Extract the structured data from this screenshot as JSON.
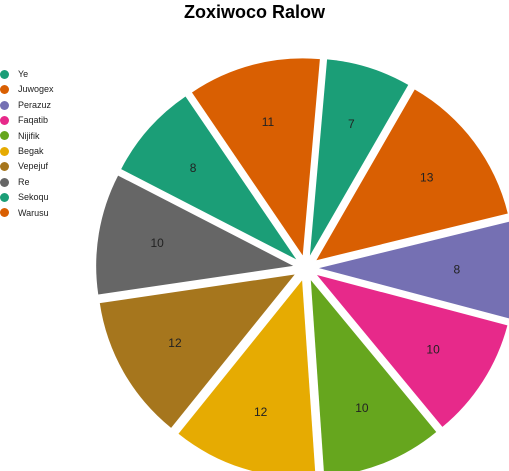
{
  "chart_data": {
    "type": "pie",
    "title": "Zoxiwoco Ralow",
    "legend_position": "left",
    "categories": [
      "Ye",
      "Juwogex",
      "Perazuz",
      "Faqatib",
      "Nijifik",
      "Begak",
      "Vepejuf",
      "Re",
      "Sekoqu",
      "Warusu"
    ],
    "values": [
      7,
      13,
      8,
      10,
      10,
      12,
      12,
      10,
      8,
      11
    ],
    "colors": [
      "#1b9e77",
      "#d95f02",
      "#7570b3",
      "#e7298a",
      "#66a61e",
      "#e6ab02",
      "#a6761d",
      "#666666",
      "#1b9e77",
      "#d95f02"
    ],
    "start_angle_deg": 5,
    "exploded": true
  }
}
